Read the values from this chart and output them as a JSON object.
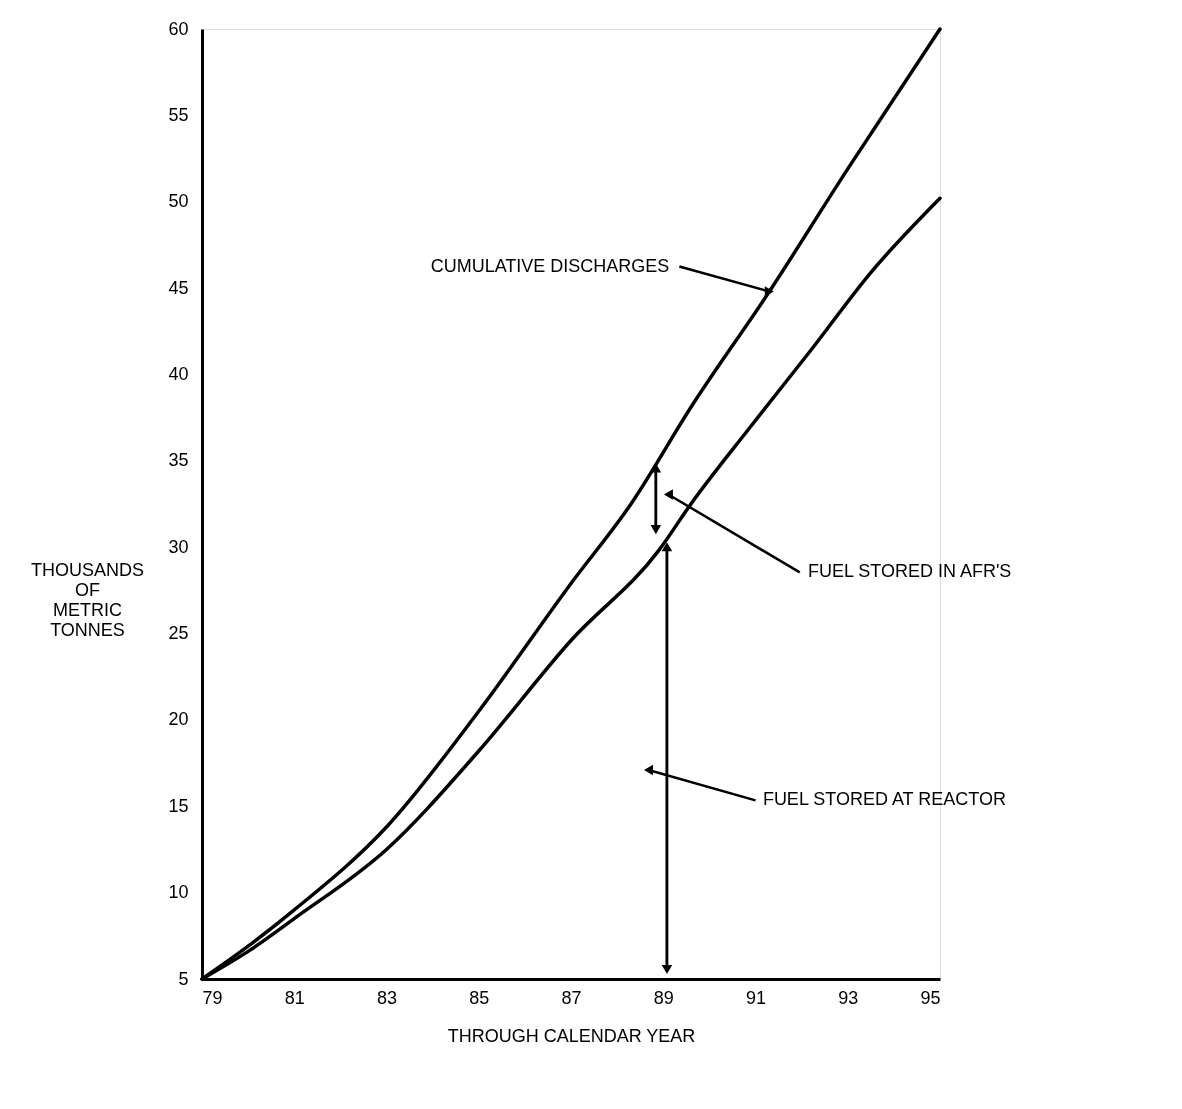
{
  "chart_data": {
    "type": "line",
    "xlabel": "THROUGH CALENDAR YEAR",
    "ylabel": "THOUSANDS OF METRIC TONNES",
    "xlim": [
      79,
      95
    ],
    "xticks": [
      79,
      81,
      83,
      85,
      87,
      89,
      91,
      93,
      95
    ],
    "ylim": [
      5,
      60
    ],
    "yticks": [
      5,
      10,
      15,
      20,
      25,
      30,
      35,
      40,
      45,
      50,
      55,
      60
    ],
    "grid": false,
    "line_style": "solid",
    "series": [
      {
        "color": "#000000",
        "x": [
          79,
          80,
          81,
          83,
          85,
          87,
          88.3,
          89.6,
          91.3,
          93,
          95
        ],
        "values": [
          5,
          6.9,
          9,
          13.8,
          20.5,
          27.9,
          32.5,
          38.1,
          44.8,
          51.9,
          60
        ]
      },
      {
        "color": "#000000",
        "x": [
          79,
          80,
          81,
          83,
          85,
          87,
          88.9,
          89.6,
          90.9,
          92.2,
          93.5,
          95
        ],
        "values": [
          5,
          6.6,
          8.5,
          12.5,
          18.2,
          24.6,
          29.8,
          32.5,
          37,
          41.4,
          45.9,
          50.2
        ]
      }
    ],
    "annotations": [
      {
        "text": "CUMULATIVE DISCHARGES",
        "x": 91.3,
        "y": 44.8
      },
      "FUEL STORED IN AFR'S",
      "FUEL STORED AT REACTOR"
    ]
  }
}
